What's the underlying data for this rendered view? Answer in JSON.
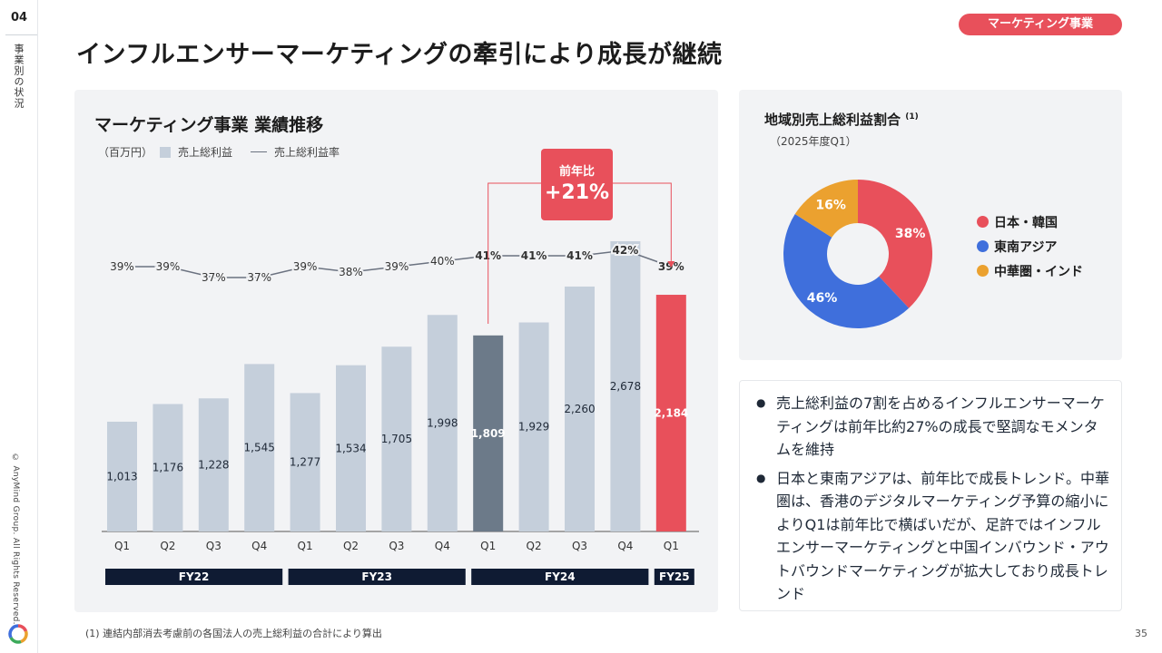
{
  "rail": {
    "page_number": "04",
    "section": "事業別の状況",
    "copyright": "© AnyMind Group. All Rights Reserved."
  },
  "header": {
    "badge": "マーケティング事業",
    "title": "インフルエンサーマーケティングの牽引により成長が継続"
  },
  "chart_panel": {
    "title": "マーケティング事業 業績推移",
    "unit": "（百万円）",
    "legend_bar": "売上総利益",
    "legend_line": "売上総利益率",
    "callout_label": "前年比",
    "callout_value": "+21%"
  },
  "chart_data": {
    "type": "bar",
    "categories": [
      "Q1",
      "Q2",
      "Q3",
      "Q4",
      "Q1",
      "Q2",
      "Q3",
      "Q4",
      "Q1",
      "Q2",
      "Q3",
      "Q4",
      "Q1"
    ],
    "series": [
      {
        "name": "売上総利益",
        "values": [
          1013,
          1176,
          1228,
          1545,
          1277,
          1534,
          1705,
          1998,
          1809,
          1929,
          2260,
          2678,
          2184
        ]
      },
      {
        "name": "売上総利益率",
        "type": "line",
        "values": [
          39,
          39,
          37,
          37,
          39,
          38,
          39,
          40,
          41,
          41,
          41,
          42,
          39
        ],
        "labels": [
          "39%",
          "39%",
          "37%",
          "37%",
          "39%",
          "38%",
          "39%",
          "40%",
          "41%",
          "41%",
          "41%",
          "42%",
          "39%"
        ]
      }
    ],
    "value_labels": [
      "1,013",
      "1,176",
      "1,228",
      "1,545",
      "1,277",
      "1,534",
      "1,705",
      "1,998",
      "1,809",
      "1,929",
      "2,260",
      "2,678",
      "2,184"
    ],
    "highlight": {
      "FY24 Q1": "#6c7a89",
      "FY25 Q1": "#e8505b"
    },
    "groups": [
      {
        "label": "FY22",
        "span": [
          0,
          3
        ]
      },
      {
        "label": "FY23",
        "span": [
          4,
          7
        ]
      },
      {
        "label": "FY24",
        "span": [
          8,
          11
        ]
      },
      {
        "label": "FY25",
        "span": [
          12,
          12
        ]
      }
    ],
    "colors": {
      "bar": "#c5cfdb",
      "line": "#6b7280",
      "group_bg": "#0f1b33"
    }
  },
  "pie": {
    "title": "地域別売上総利益割合",
    "title_note": "(1)",
    "subtitle": "（2025年度Q1）",
    "slices": [
      {
        "name": "日本・韓国",
        "value": 38,
        "label": "38%",
        "color": "#e8505b"
      },
      {
        "name": "東南アジア",
        "value": 46,
        "label": "46%",
        "color": "#3f6fdc"
      },
      {
        "name": "中華圏・インド",
        "value": 16,
        "label": "16%",
        "color": "#eba12f"
      }
    ]
  },
  "notes": [
    "売上総利益の7割を占めるインフルエンサーマーケティングは前年比約27%の成長で堅調なモメンタムを維持",
    "日本と東南アジアは、前年比で成長トレンド。中華圏は、香港のデジタルマーケティング予算の縮小によりQ1は前年比で横ばいだが、足許ではインフルエンサーマーケティングと中国インバウンド・アウトバウンドマーケティングが拡大しており成長トレンド"
  ],
  "footnote": "(1) 連結内部消去考慮前の各国法人の売上総利益の合計により算出",
  "page_number": "35"
}
